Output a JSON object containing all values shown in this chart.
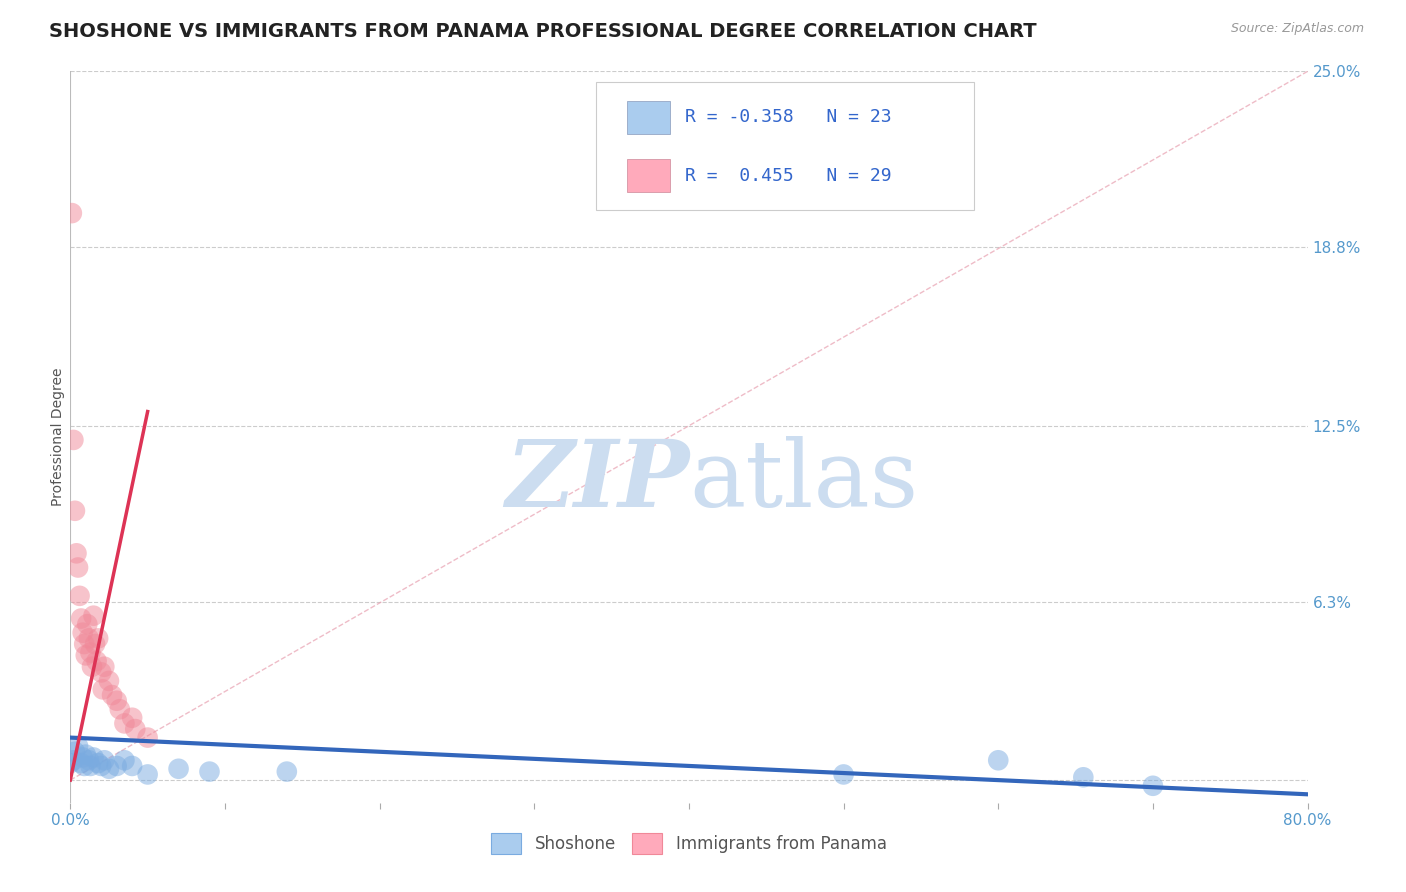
{
  "title": "SHOSHONE VS IMMIGRANTS FROM PANAMA PROFESSIONAL DEGREE CORRELATION CHART",
  "source_text": "Source: ZipAtlas.com",
  "ylabel": "Professional Degree",
  "xlim": [
    0,
    0.8
  ],
  "ylim": [
    -0.008,
    0.25
  ],
  "xticks": [
    0.0,
    0.1,
    0.2,
    0.3,
    0.4,
    0.5,
    0.6,
    0.7,
    0.8
  ],
  "xticklabels": [
    "0.0%",
    "",
    "",
    "",
    "",
    "",
    "",
    "",
    "80.0%"
  ],
  "ytick_positions": [
    0.0,
    0.063,
    0.125,
    0.188,
    0.25
  ],
  "ytick_labels": [
    "",
    "6.3%",
    "12.5%",
    "18.8%",
    "25.0%"
  ],
  "grid_color": "#cccccc",
  "background_color": "#ffffff",
  "watermark_color": "#ccddf0",
  "legend_color1": "#aaccee",
  "legend_color2": "#ffaabb",
  "shoshone_color": "#7aabe0",
  "panama_color": "#f08898",
  "trendline_shoshone_color": "#3366bb",
  "trendline_panama_color": "#dd3355",
  "diag_color": "#e8a0b0",
  "shoshone_points_x": [
    0.0,
    0.002,
    0.003,
    0.005,
    0.007,
    0.008,
    0.009,
    0.01,
    0.012,
    0.013,
    0.015,
    0.018,
    0.02,
    0.022,
    0.025,
    0.03,
    0.035,
    0.04,
    0.05,
    0.07,
    0.09,
    0.14,
    0.5,
    0.6,
    0.655,
    0.7
  ],
  "shoshone_points_y": [
    0.006,
    0.007,
    0.01,
    0.012,
    0.006,
    0.008,
    0.005,
    0.009,
    0.007,
    0.005,
    0.008,
    0.006,
    0.005,
    0.007,
    0.004,
    0.005,
    0.007,
    0.005,
    0.002,
    0.004,
    0.003,
    0.003,
    0.002,
    0.007,
    0.001,
    -0.002
  ],
  "panama_points_x": [
    0.001,
    0.002,
    0.003,
    0.004,
    0.005,
    0.006,
    0.007,
    0.008,
    0.009,
    0.01,
    0.011,
    0.012,
    0.013,
    0.014,
    0.015,
    0.016,
    0.017,
    0.018,
    0.02,
    0.021,
    0.022,
    0.025,
    0.027,
    0.03,
    0.032,
    0.035,
    0.04,
    0.042,
    0.05
  ],
  "panama_points_y": [
    0.2,
    0.12,
    0.095,
    0.08,
    0.075,
    0.065,
    0.057,
    0.052,
    0.048,
    0.044,
    0.055,
    0.05,
    0.045,
    0.04,
    0.058,
    0.048,
    0.042,
    0.05,
    0.038,
    0.032,
    0.04,
    0.035,
    0.03,
    0.028,
    0.025,
    0.02,
    0.022,
    0.018,
    0.015
  ],
  "panama_trendline_x": [
    0.0,
    0.05
  ],
  "panama_trendline_y": [
    0.0,
    0.13
  ],
  "shoshone_trendline_x": [
    0.0,
    0.8
  ],
  "shoshone_trendline_y": [
    0.015,
    -0.005
  ],
  "diag_line_x": [
    0.0,
    0.8
  ],
  "diag_line_y": [
    0.0,
    0.25
  ],
  "title_fontsize": 14,
  "tick_fontsize": 11,
  "legend_fontsize": 13,
  "ylabel_fontsize": 10
}
